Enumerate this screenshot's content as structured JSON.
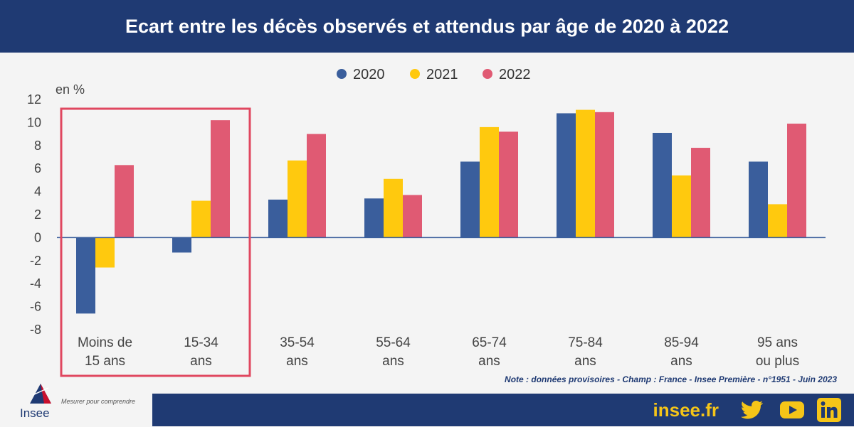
{
  "header": {
    "title": "Ecart entre les décès observés et attendus par âge de 2020 à 2022"
  },
  "chart_data": {
    "type": "bar",
    "title": "Ecart entre les décès observés et attendus par âge de 2020 à 2022",
    "ylabel": "en %",
    "ylim": [
      -8,
      12
    ],
    "yticks": [
      12,
      10,
      8,
      6,
      4,
      2,
      0,
      -2,
      -4,
      -6,
      -8
    ],
    "grid": false,
    "legend_position": "top-center",
    "categories": [
      [
        "Moins de",
        "15 ans"
      ],
      [
        "15-34",
        "ans"
      ],
      [
        "35-54",
        "ans"
      ],
      [
        "55-64",
        "ans"
      ],
      [
        "65-74",
        "ans"
      ],
      [
        "75-84",
        "ans"
      ],
      [
        "85-94",
        "ans"
      ],
      [
        "95 ans",
        "ou plus"
      ]
    ],
    "series": [
      {
        "name": "2020",
        "color": "#3a5e9c",
        "values": [
          -6.6,
          -1.3,
          3.3,
          3.4,
          6.6,
          10.8,
          9.1,
          6.6
        ]
      },
      {
        "name": "2021",
        "color": "#ffc90e",
        "values": [
          -2.6,
          3.2,
          6.7,
          5.1,
          9.6,
          11.1,
          5.4,
          2.9
        ]
      },
      {
        "name": "2022",
        "color": "#e05a73",
        "values": [
          6.3,
          10.2,
          9.0,
          3.7,
          9.2,
          10.9,
          7.8,
          9.9
        ]
      }
    ],
    "highlight": {
      "categories": [
        0,
        1
      ],
      "color": "#e0475f"
    }
  },
  "footer": {
    "note": "Note : données provisoires - Champ : France - Insee Première - n°1951 - Juin 2023",
    "site": "insee.fr",
    "logo_name": "Insee",
    "logo_tagline": "Mesurer pour comprendre",
    "social_icons": [
      "twitter-icon",
      "youtube-icon",
      "linkedin-icon"
    ],
    "accent_color": "#f5c518",
    "brand_color": "#1f3a73"
  }
}
